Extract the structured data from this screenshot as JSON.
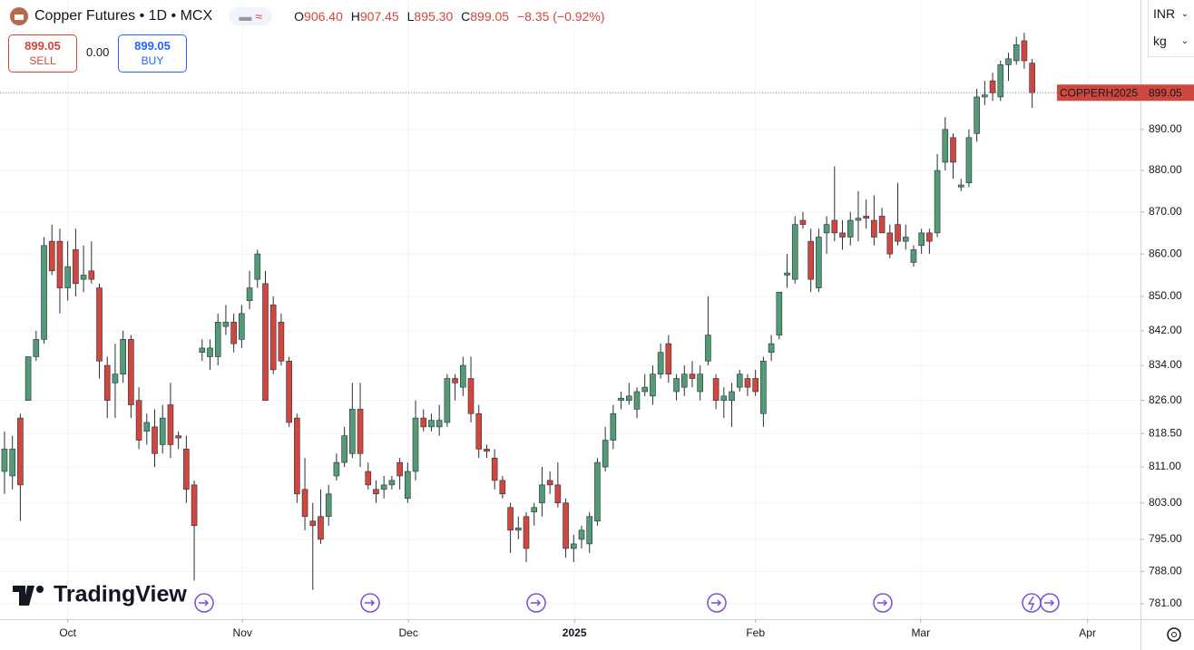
{
  "header": {
    "title": "Copper Futures • 1D • MCX",
    "ohlc": [
      [
        "O",
        "906.40"
      ],
      [
        "H",
        "907.45"
      ],
      [
        "L",
        "895.30"
      ],
      [
        "C",
        "899.05"
      ]
    ],
    "change": "−8.35 (−0.92%)"
  },
  "trade": {
    "sell_price": "899.05",
    "sell": "SELL",
    "spread": "0.00",
    "buy_price": "899.05",
    "buy": "BUY"
  },
  "currency": "INR",
  "unit": "kg",
  "logo": "TradingView",
  "chart_data": {
    "type": "candlestick",
    "log_scale": true,
    "grid": true,
    "up_color": "#529b76",
    "down_color": "#d0473f",
    "wick_color": "#2a2e39",
    "ylim": [
      777.7,
      922.3
    ],
    "yticks": [
      {
        "value": 781,
        "label": "781.00"
      },
      {
        "value": 788,
        "label": "788.00"
      },
      {
        "value": 795,
        "label": "795.00"
      },
      {
        "value": 803,
        "label": "803.00"
      },
      {
        "value": 811,
        "label": "811.00"
      },
      {
        "value": 818.5,
        "label": "818.50"
      },
      {
        "value": 826,
        "label": "826.00"
      },
      {
        "value": 834,
        "label": "834.00"
      },
      {
        "value": 842,
        "label": "842.00"
      },
      {
        "value": 850,
        "label": "850.00"
      },
      {
        "value": 860,
        "label": "860.00"
      },
      {
        "value": 870,
        "label": "870.00"
      },
      {
        "value": 880,
        "label": "880.00"
      },
      {
        "value": 890,
        "label": "890.00"
      }
    ],
    "xlim": [
      -0.57,
      143.7
    ],
    "xticks": [
      {
        "value": 8.0,
        "label": "Oct"
      },
      {
        "value": 30.1,
        "label": "Nov"
      },
      {
        "value": 51.1,
        "label": "Dec"
      },
      {
        "value": 72.1,
        "label": "2025"
      },
      {
        "value": 95.0,
        "label": "Feb"
      },
      {
        "value": 115.9,
        "label": "Mar"
      },
      {
        "value": 137.0,
        "label": "Apr"
      }
    ],
    "last_price": {
      "symbol": "COPPERH2025",
      "value": 899.05,
      "label": "899.05"
    },
    "open": [
      810,
      809,
      822,
      826,
      836,
      840,
      863,
      863,
      852,
      861,
      854,
      856,
      852,
      834,
      830,
      832,
      840,
      826,
      819,
      820,
      816,
      825,
      818,
      815,
      807,
      837,
      836,
      836,
      843,
      844,
      840,
      849,
      854,
      853,
      848,
      844,
      835,
      822,
      806,
      799,
      800,
      800,
      809,
      812,
      814,
      824,
      810,
      806,
      806,
      807,
      812,
      804,
      810,
      822,
      820,
      820,
      821,
      831,
      829,
      831,
      823,
      815,
      813,
      808,
      802,
      797,
      800,
      801,
      803,
      808,
      807,
      803,
      793,
      795,
      794,
      799,
      811,
      817,
      826,
      826,
      824,
      828,
      827,
      832,
      839,
      828,
      829,
      832,
      828,
      835,
      831,
      826,
      826,
      829,
      831,
      831,
      823,
      837,
      841,
      855,
      854,
      868,
      863,
      852,
      865,
      868,
      865,
      864,
      868,
      869,
      868,
      869,
      865,
      867,
      863,
      858,
      862,
      865,
      865,
      882,
      888,
      876,
      877,
      889,
      898,
      902,
      898,
      906,
      907,
      912,
      906.4
    ],
    "high": [
      819,
      818,
      823,
      836,
      842,
      864,
      867,
      866,
      863,
      866,
      862,
      863,
      853,
      836,
      839,
      842,
      841,
      829,
      823,
      824,
      825,
      830,
      819,
      818,
      808,
      840,
      840,
      846,
      848,
      846,
      848,
      856,
      861,
      856,
      850,
      846,
      836,
      823,
      813,
      803,
      806,
      807,
      814,
      820,
      830,
      830,
      812,
      808,
      809,
      809,
      813,
      812,
      826,
      824,
      823,
      825,
      832,
      832,
      836,
      836,
      825,
      816,
      815,
      809,
      803,
      800,
      801,
      803,
      811,
      810,
      812,
      804,
      796,
      798,
      801,
      813,
      820,
      825,
      828,
      830,
      829,
      832,
      834,
      839,
      841,
      832,
      834,
      835,
      834,
      850,
      832,
      829,
      830,
      833,
      832,
      833,
      836,
      841,
      851,
      860,
      869,
      870,
      866,
      866,
      869,
      881,
      868,
      870,
      875,
      873,
      874,
      871,
      867,
      877,
      867,
      862,
      866,
      866,
      884,
      893,
      889,
      878,
      890,
      900,
      902,
      904,
      907,
      909,
      913,
      914,
      907.45
    ],
    "low": [
      805,
      806,
      799,
      826,
      835,
      839,
      855,
      846,
      849,
      850,
      851,
      853,
      831,
      822,
      822,
      830,
      822,
      815,
      816,
      811,
      814,
      813,
      815,
      803,
      786,
      835,
      833,
      834,
      841,
      837,
      838,
      847,
      852,
      826,
      832,
      834,
      820,
      803,
      797,
      784,
      794,
      798,
      808,
      811,
      813,
      811,
      806,
      803,
      804,
      806,
      806,
      803,
      808,
      819,
      819,
      818,
      820,
      826,
      827,
      821,
      813,
      813,
      806,
      804,
      792,
      795,
      790,
      798,
      800,
      805,
      802,
      791,
      790,
      793,
      792,
      798,
      810,
      815,
      824,
      825,
      822,
      827,
      825,
      831,
      830,
      826,
      827,
      829,
      826,
      834,
      824,
      822,
      820,
      828,
      827,
      827,
      820,
      835,
      840,
      852,
      853,
      866,
      851,
      851,
      860,
      863,
      861,
      862,
      863,
      866,
      862,
      866,
      859,
      862,
      861,
      857,
      860,
      860,
      864,
      880,
      878,
      875,
      876,
      887,
      896,
      897,
      897,
      902,
      906,
      905,
      895.3
    ],
    "close": [
      815,
      815,
      807,
      836,
      840,
      862,
      856,
      852,
      857,
      853,
      855,
      854,
      835,
      826,
      832,
      840,
      825,
      817,
      821,
      814,
      822,
      816,
      817.5,
      806,
      798,
      838,
      838,
      844,
      844,
      839,
      846,
      852,
      860,
      826,
      833,
      835,
      821,
      805,
      800,
      798,
      795,
      805,
      812,
      818,
      824,
      814,
      807,
      805,
      807,
      808,
      809,
      810,
      822,
      820,
      821.5,
      821.5,
      831,
      830,
      834,
      823,
      815,
      814.5,
      808,
      805,
      797,
      797.5,
      793,
      802,
      807,
      807,
      803,
      793,
      794,
      797,
      800,
      812,
      817,
      823,
      826.5,
      827,
      828,
      829,
      832,
      837,
      832,
      831,
      832,
      831,
      832,
      841,
      826,
      827,
      828,
      832,
      829,
      828,
      835,
      839,
      851,
      855.5,
      867,
      867,
      854,
      864,
      867,
      865,
      864,
      868,
      868.5,
      868.5,
      864,
      865,
      860,
      863,
      864,
      861,
      865,
      863,
      880,
      890,
      882,
      876.5,
      888,
      898,
      898.5,
      899,
      906,
      907.5,
      911,
      907,
      899.05
    ]
  }
}
